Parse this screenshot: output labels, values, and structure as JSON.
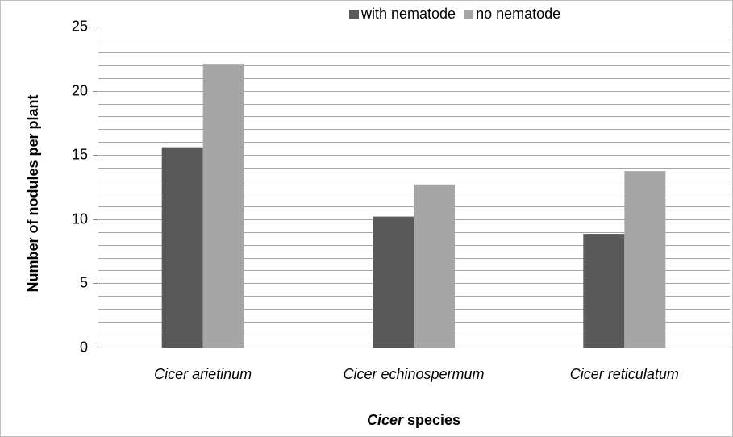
{
  "chart_data": {
    "type": "bar",
    "y_label": "Number of nodules per plant",
    "x_label": [
      "Cicer",
      "species"
    ],
    "categories": [
      "Cicer arietinum",
      "Cicer echinospermum",
      "Cicer reticulatum"
    ],
    "series": [
      {
        "name": "with nematode",
        "color": "#595959",
        "values": [
          15.6,
          10.2,
          8.85
        ]
      },
      {
        "name": "no nematode",
        "color": "#a6a6a6",
        "values": [
          22.1,
          12.7,
          13.75
        ]
      }
    ],
    "ylim": [
      0,
      25
    ],
    "yticks": [
      0,
      5,
      10,
      15,
      20,
      25
    ],
    "minor_yticks": [
      1,
      2,
      3,
      4,
      6,
      7,
      8,
      9,
      11,
      12,
      13,
      14,
      16,
      17,
      18,
      19,
      21,
      22,
      23,
      24
    ],
    "grid": true,
    "legend": "top"
  }
}
